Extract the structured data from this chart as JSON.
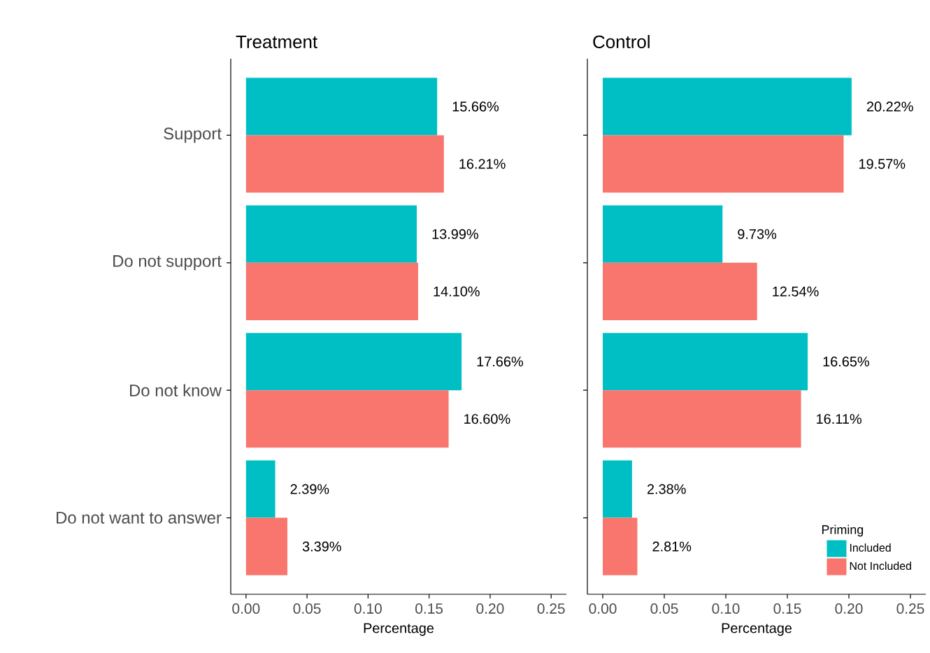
{
  "chart_data": [
    {
      "type": "bar",
      "orientation": "horizontal",
      "title": "Treatment",
      "xlabel": "Percentage",
      "categories": [
        "Support",
        "Do not support",
        "Do not know",
        "Do not want to answer"
      ],
      "series": [
        {
          "color": "#00bfc4",
          "values": [
            0.1566,
            0.1399,
            0.1766,
            0.0239
          ],
          "value_labels": [
            "15.66%",
            "13.99%",
            "17.66%",
            "2.39%"
          ]
        },
        {
          "color": "#f8766d",
          "values": [
            0.1621,
            0.141,
            0.166,
            0.0339
          ],
          "value_labels": [
            "16.21%",
            "14.10%",
            "16.60%",
            "3.39%"
          ]
        }
      ],
      "xlim": [
        -0.0125,
        0.2625
      ],
      "xticks": [
        {
          "value": 0,
          "label": "0.00"
        },
        {
          "value": 0.05,
          "label": "0.05"
        },
        {
          "value": 0.1,
          "label": "0.10"
        },
        {
          "value": 0.15,
          "label": "0.15"
        },
        {
          "value": 0.2,
          "label": "0.20"
        },
        {
          "value": 0.25,
          "label": "0.25"
        }
      ]
    },
    {
      "type": "bar",
      "orientation": "horizontal",
      "title": "Control",
      "xlabel": "Percentage",
      "categories": [
        null,
        null,
        null,
        null
      ],
      "tick_labels": "x",
      "legend": "bottom right",
      "legend_title": "Priming",
      "series": [
        {
          "name": "Included",
          "color": "#00bfc4",
          "values": [
            0.2022,
            0.0973,
            0.1665,
            0.0238
          ],
          "value_labels": [
            "20.22%",
            "9.73%",
            "16.65%",
            "2.38%"
          ]
        },
        {
          "name": "Not Included",
          "color": "#f8766d",
          "values": [
            0.1957,
            0.1254,
            0.1611,
            0.0281
          ],
          "value_labels": [
            "19.57%",
            "12.54%",
            "16.11%",
            "2.81%"
          ]
        }
      ],
      "xlim": [
        -0.0125,
        0.2625
      ],
      "xticks": [
        {
          "value": 0,
          "label": "0.00"
        },
        {
          "value": 0.05,
          "label": "0.05"
        },
        {
          "value": 0.1,
          "label": "0.10"
        },
        {
          "value": 0.15,
          "label": "0.15"
        },
        {
          "value": 0.2,
          "label": "0.20"
        },
        {
          "value": 0.25,
          "label": "0.25"
        }
      ]
    }
  ]
}
